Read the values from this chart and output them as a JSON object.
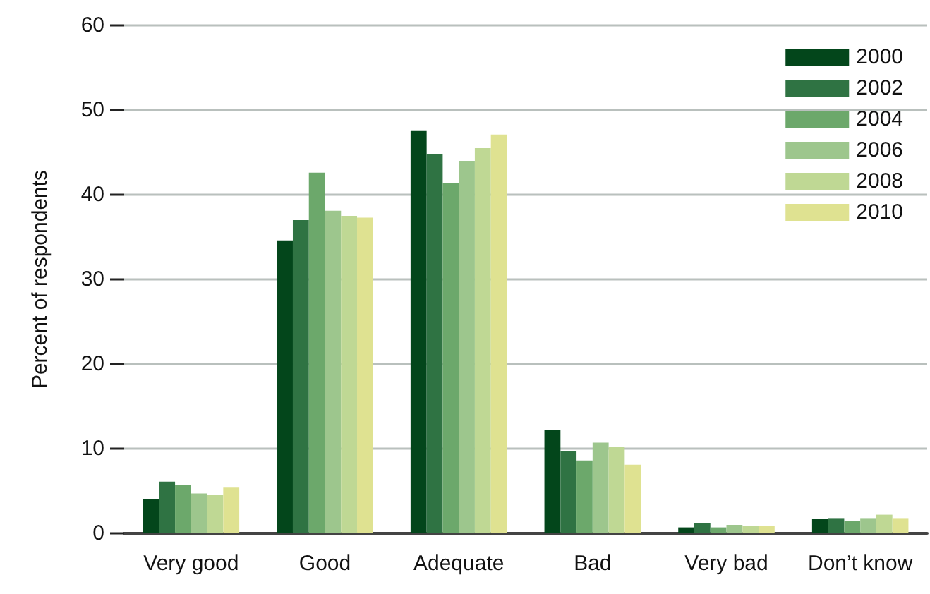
{
  "chart_data": {
    "type": "bar",
    "ylabel": "Percent of respondents",
    "categories": [
      "Very good",
      "Good",
      "Adequate",
      "Bad",
      "Very bad",
      "Don’t know"
    ],
    "series": [
      {
        "name": "2000",
        "color": "#03461b",
        "values": [
          4,
          34.6,
          47.6,
          12.2,
          0.7,
          1.7
        ]
      },
      {
        "name": "2002",
        "color": "#2f7343",
        "values": [
          6.1,
          37,
          44.8,
          9.7,
          1.2,
          1.8
        ]
      },
      {
        "name": "2004",
        "color": "#6ca86b",
        "values": [
          5.7,
          42.6,
          41.4,
          8.6,
          0.7,
          1.5
        ]
      },
      {
        "name": "2006",
        "color": "#9dc68d",
        "values": [
          4.7,
          38.1,
          44,
          10.7,
          1,
          1.8
        ]
      },
      {
        "name": "2008",
        "color": "#bfd894",
        "values": [
          4.5,
          37.5,
          45.5,
          10.2,
          0.9,
          2.2
        ]
      },
      {
        "name": "2010",
        "color": "#dfe291",
        "values": [
          5.4,
          37.3,
          47.1,
          8.1,
          0.9,
          1.8
        ]
      }
    ],
    "ylim": [
      0,
      60
    ],
    "yticks": [
      0,
      10,
      20,
      30,
      40,
      50,
      60
    ],
    "grid": "y",
    "legend": "top right"
  }
}
